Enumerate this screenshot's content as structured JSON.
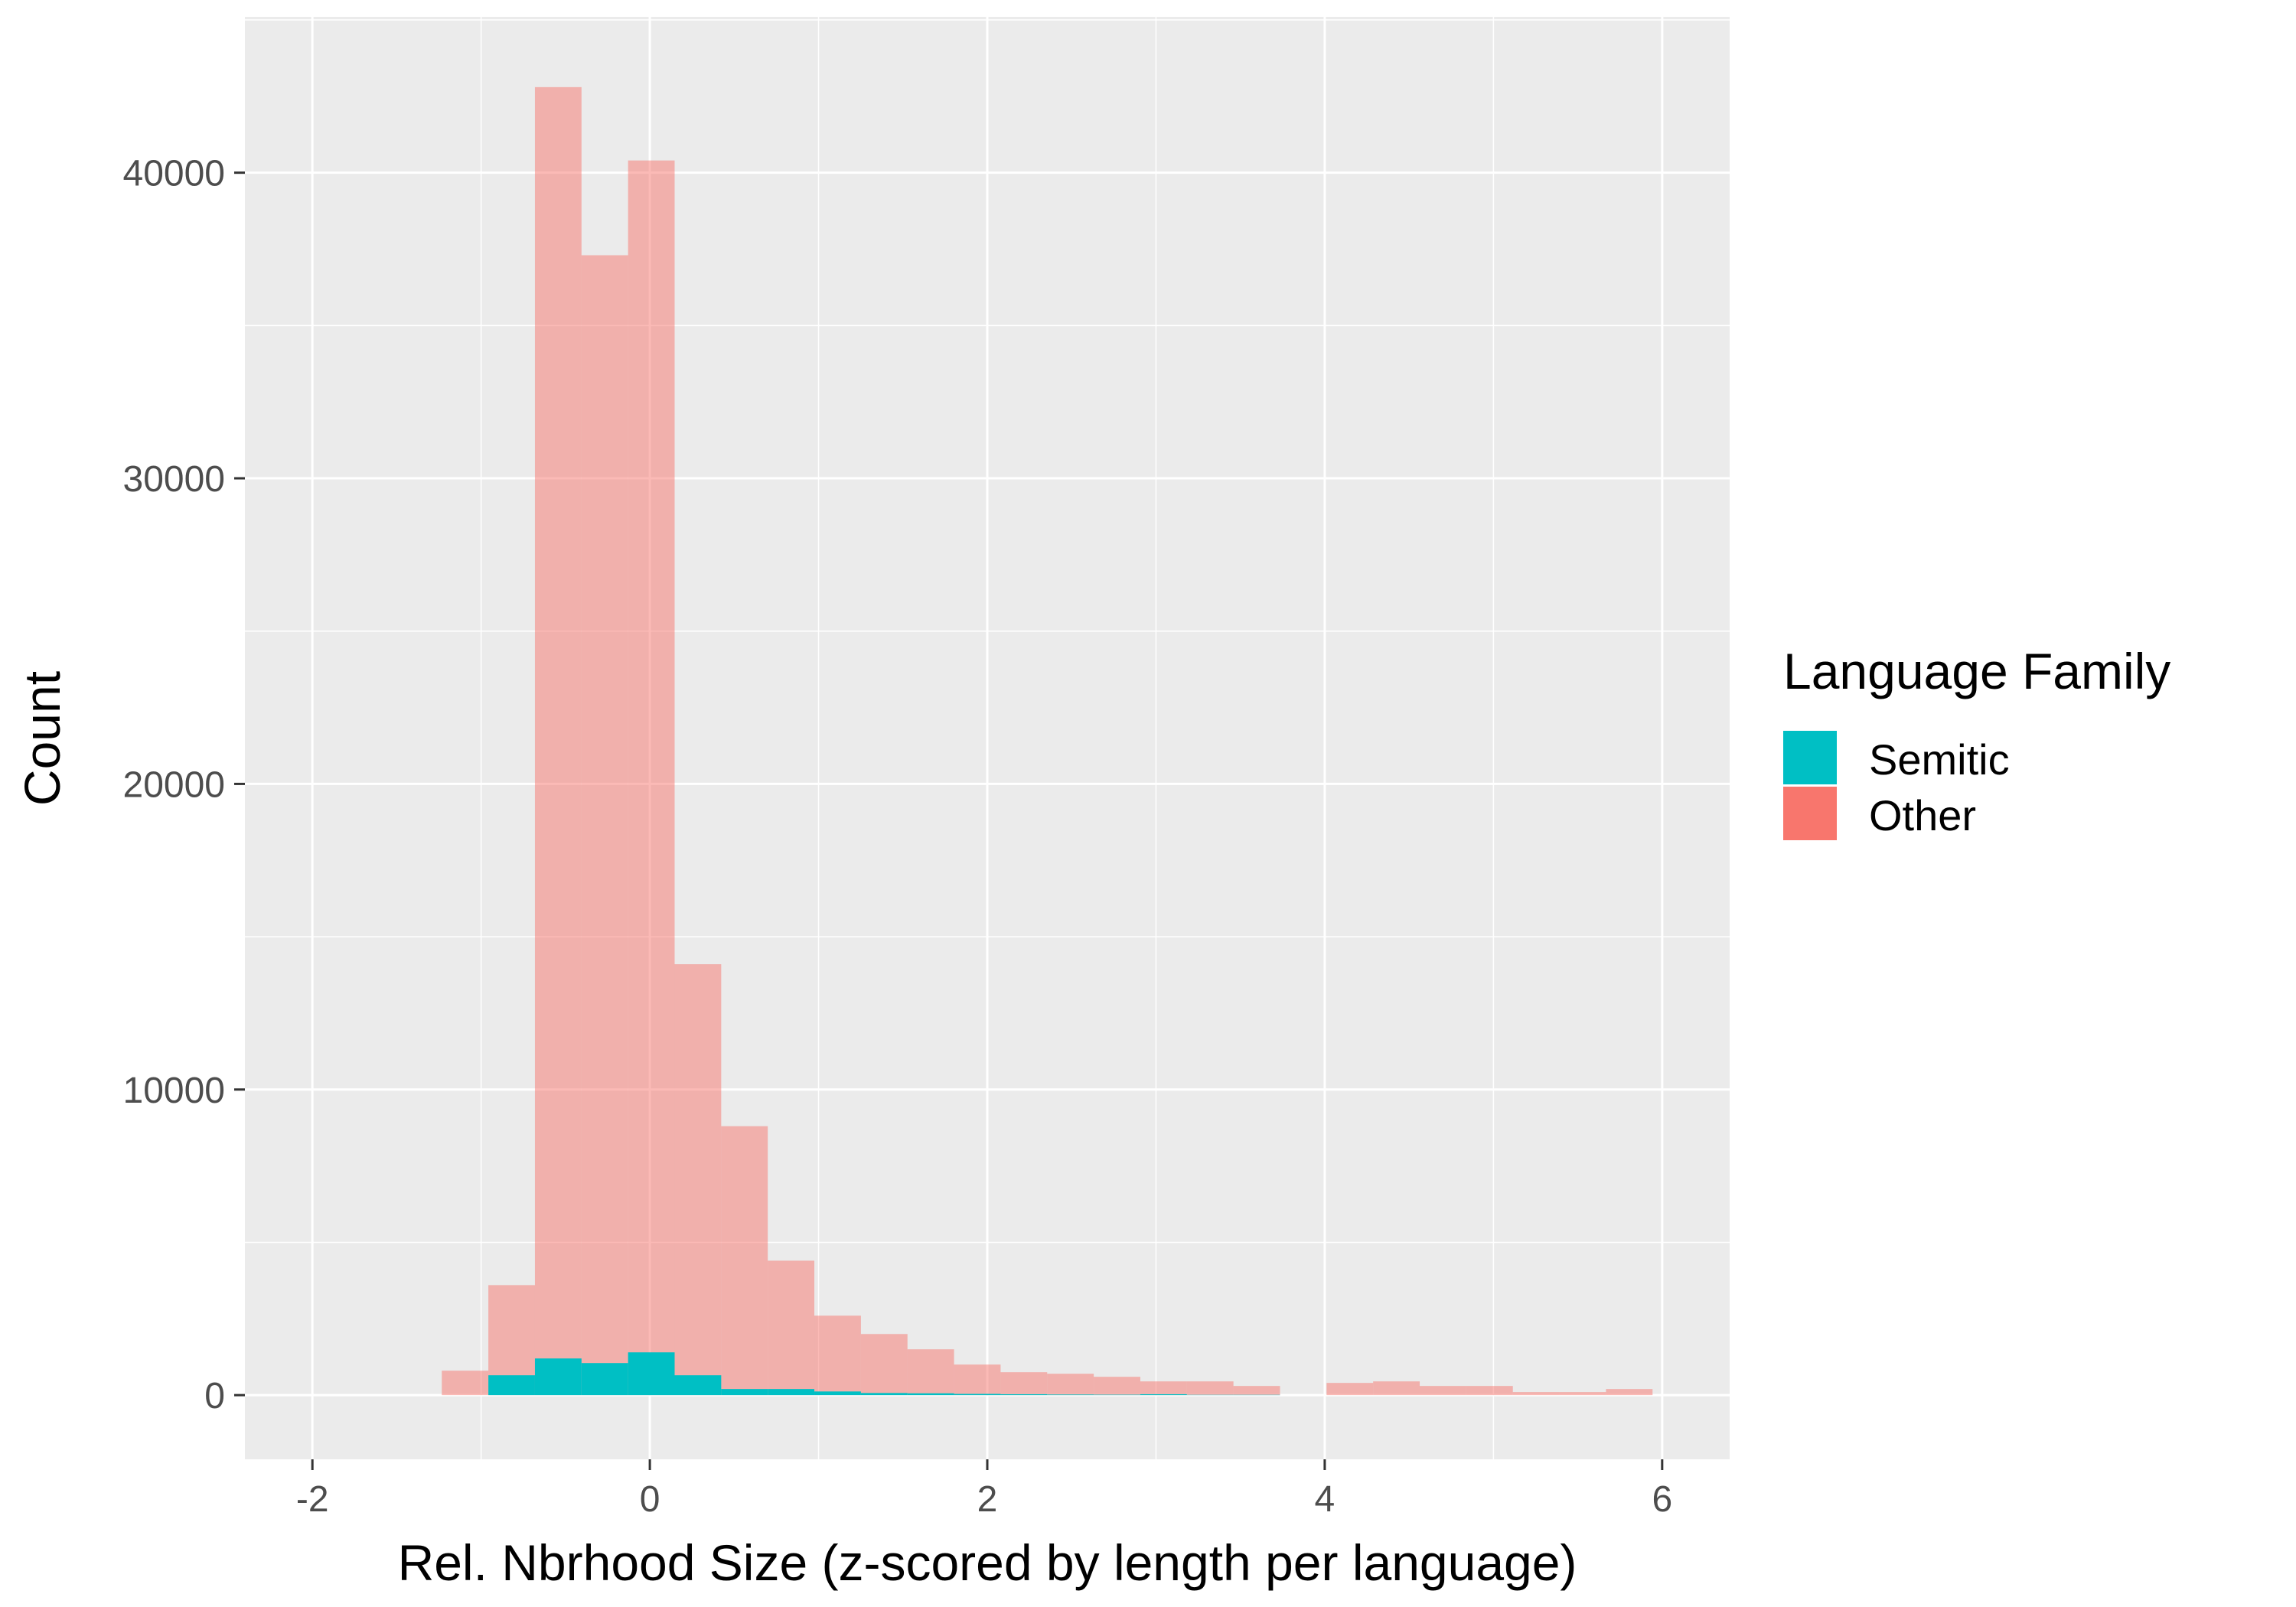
{
  "chart_data": {
    "type": "bar",
    "subtype": "overlaid-histogram",
    "title": "",
    "xlabel": "Rel. Nbrhood Size (z-scored by length per language)",
    "ylabel": "Count",
    "xlim": [
      -2.4,
      6.4
    ],
    "ylim": [
      -2100,
      45100
    ],
    "x_ticks": [
      -2,
      0,
      2,
      4,
      6
    ],
    "x_tick_labels": [
      "-2",
      "0",
      "2",
      "4",
      "6"
    ],
    "y_ticks": [
      0,
      10000,
      20000,
      30000,
      40000
    ],
    "y_tick_labels": [
      "0",
      "10000",
      "20000",
      "30000",
      "40000"
    ],
    "grid": true,
    "legend": {
      "title": "Language Family",
      "placement": "right",
      "entries": [
        "Semitic",
        "Other"
      ]
    },
    "bin_width": 0.276,
    "bin_centers": [
      -1.095,
      -0.819,
      -0.543,
      -0.267,
      0.009,
      0.285,
      0.561,
      0.837,
      1.113,
      1.389,
      1.665,
      1.941,
      2.217,
      2.493,
      2.769,
      3.045,
      3.321,
      3.597,
      3.873,
      4.149,
      4.425,
      4.701,
      4.977,
      5.253,
      5.529,
      5.805
    ],
    "series": [
      {
        "name": "Other",
        "color": "#F8766D",
        "opacity": 0.5,
        "values": [
          800,
          3600,
          42800,
          37300,
          40400,
          14100,
          8800,
          4400,
          2600,
          2000,
          1500,
          1000,
          750,
          700,
          600,
          450,
          450,
          300,
          0,
          400,
          450,
          300,
          300,
          100,
          100,
          200
        ]
      },
      {
        "name": "Semitic",
        "color": "#00BFC4",
        "opacity": 1.0,
        "values": [
          0,
          650,
          1200,
          1050,
          1400,
          650,
          200,
          200,
          120,
          70,
          60,
          40,
          30,
          20,
          15,
          30,
          10,
          10,
          0,
          0,
          0,
          0,
          0,
          0,
          0,
          0
        ]
      }
    ]
  }
}
